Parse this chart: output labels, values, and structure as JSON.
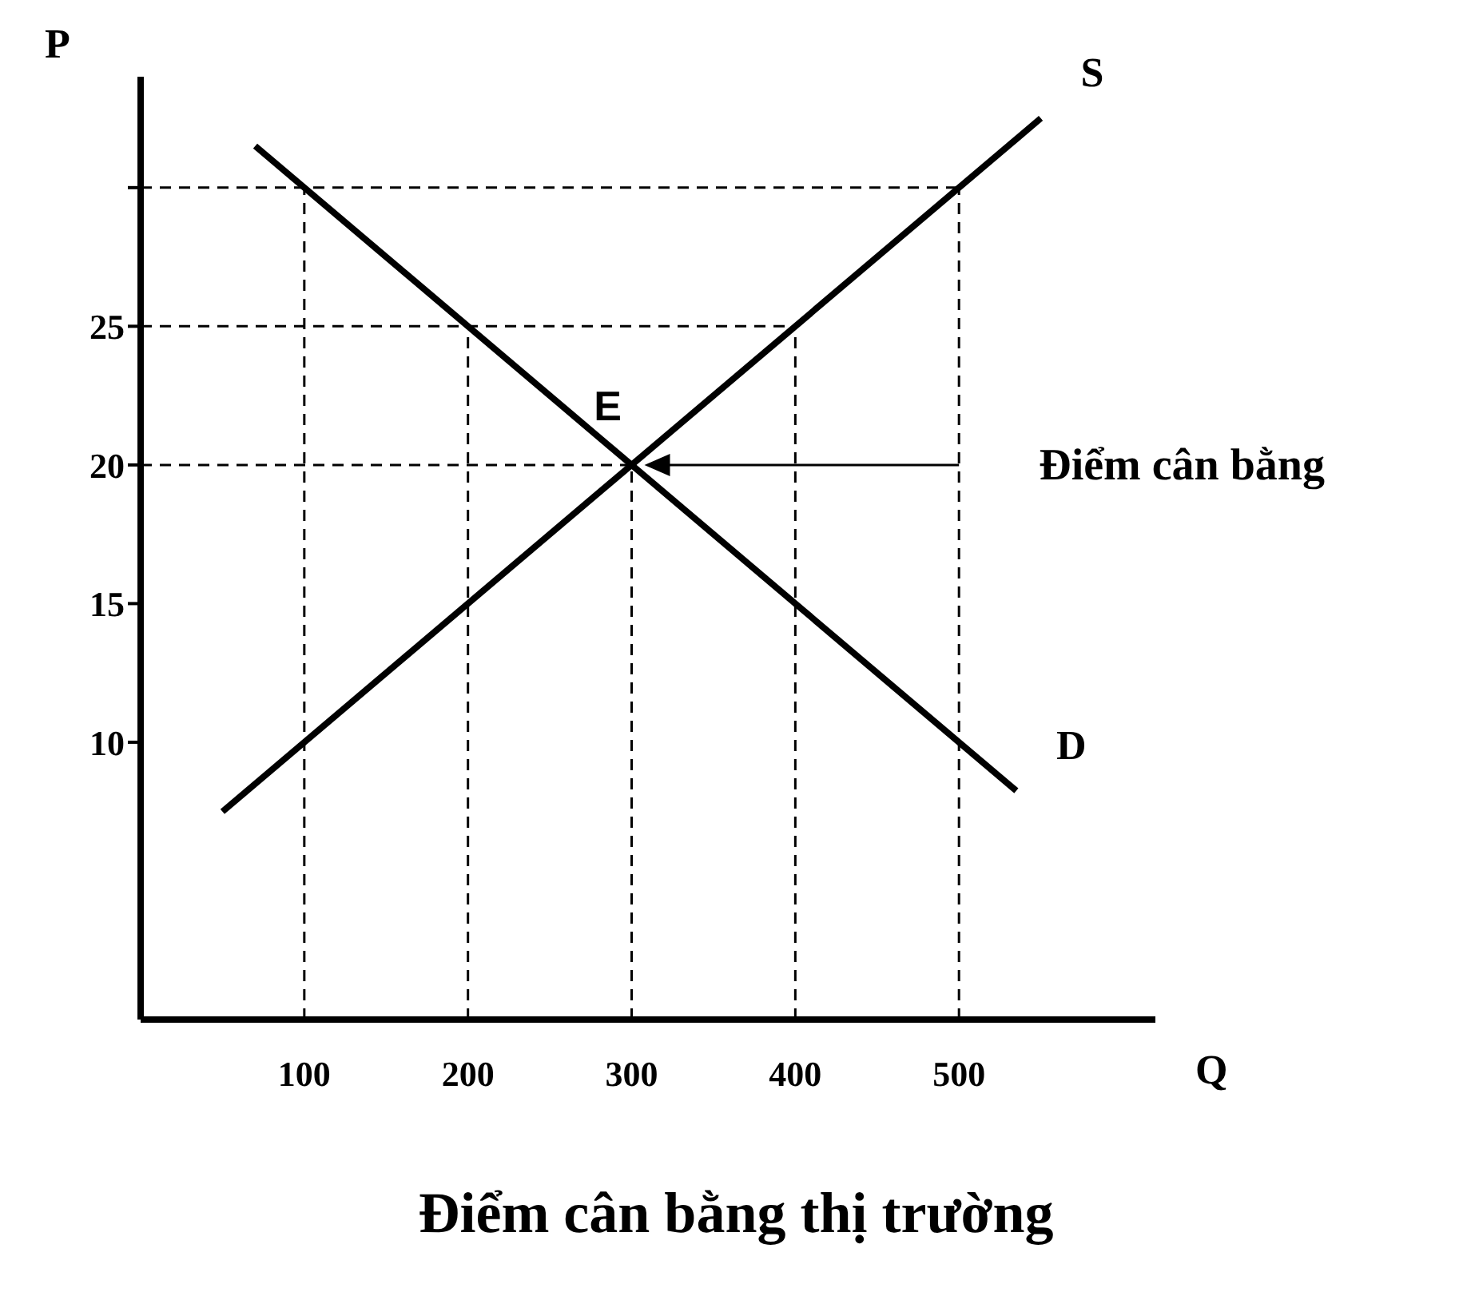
{
  "chart_data": {
    "type": "line",
    "title": "Điểm cân bằng thị trường",
    "xlabel": "Q",
    "ylabel": "P",
    "xlim": [
      0,
      620
    ],
    "ylim": [
      0,
      34
    ],
    "xticks": [
      100,
      200,
      300,
      400,
      500
    ],
    "yticks": [
      10,
      15,
      20,
      25,
      {
        "value": 30,
        "label": null
      }
    ],
    "series": [
      {
        "name": "S",
        "color": "#000000",
        "x": [
          50,
          550
        ],
        "values": [
          7.5,
          32.5
        ]
      },
      {
        "name": "D",
        "color": "#000000",
        "x": [
          70,
          535
        ],
        "values": [
          31.5,
          8.25
        ]
      },
      {
        "color": "#000000",
        "line_style": "dashed",
        "x": [
          100,
          100
        ],
        "values": [
          0,
          30
        ]
      },
      {
        "color": "#000000",
        "line_style": "dashed",
        "x": [
          200,
          200
        ],
        "values": [
          0,
          25
        ]
      },
      {
        "color": "#000000",
        "line_style": "dashed",
        "x": [
          300,
          300
        ],
        "values": [
          0,
          20
        ]
      },
      {
        "color": "#000000",
        "line_style": "dashed",
        "x": [
          400,
          400
        ],
        "values": [
          0,
          25
        ]
      },
      {
        "color": "#000000",
        "line_style": "dashed",
        "x": [
          500,
          500
        ],
        "values": [
          0,
          30
        ]
      },
      {
        "color": "#000000",
        "line_style": "dashed",
        "x": [
          0,
          500
        ],
        "values": [
          30,
          30
        ]
      },
      {
        "color": "#000000",
        "line_style": "dashed",
        "x": [
          0,
          400
        ],
        "values": [
          25,
          25
        ]
      },
      {
        "color": "#000000",
        "line_style": "dashed",
        "x": [
          0,
          300
        ],
        "values": [
          20,
          20
        ]
      }
    ],
    "annotations": [
      {
        "text": "E",
        "x": 300,
        "y": 20
      },
      "Điểm cân bằng"
    ],
    "marker": "none"
  }
}
